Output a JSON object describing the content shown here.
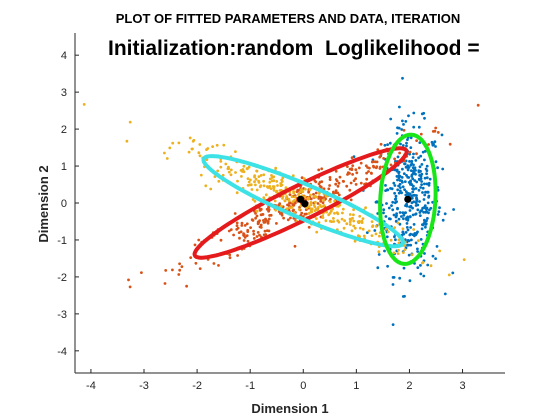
{
  "chart_data": {
    "type": "scatter",
    "title": "PLOT OF FITTED PARAMETERS AND DATA, ITERATION",
    "annotations": [
      "Initialization:random",
      "Loglikelihood ="
    ],
    "xlabel": "Dimension 1",
    "ylabel": "Dimension 2",
    "xlim": [
      -4.3,
      3.8
    ],
    "ylim": [
      -4.6,
      4.6
    ],
    "xticks": [
      "-4",
      "-3",
      "-2",
      "-1",
      "0",
      "1",
      "2",
      "3"
    ],
    "yticks": [
      "-4",
      "-3",
      "-2",
      "-1",
      "0",
      "1",
      "2",
      "3",
      "4"
    ],
    "grid": false,
    "series": [
      {
        "color": "#0072BD",
        "center": [
          2.0,
          0.1
        ],
        "spread": [
          0.3,
          1.0
        ],
        "rotation_deg": 0,
        "count": 420
      },
      {
        "color": "#D95319",
        "center": [
          -0.05,
          0.0
        ],
        "spread": [
          1.35,
          0.22
        ],
        "rotation_deg": 36,
        "count": 360
      },
      {
        "color": "#EDB120",
        "center": [
          0.0,
          0.05
        ],
        "spread": [
          1.3,
          0.22
        ],
        "rotation_deg": -32,
        "count": 360
      }
    ],
    "ellipses": [
      {
        "color": "#E41A1C",
        "center": [
          -0.05,
          0.0
        ],
        "semi_axes": [
          2.45,
          0.42
        ],
        "rotation_deg": 36
      },
      {
        "color": "#3CE2E6",
        "center": [
          0.0,
          0.05
        ],
        "semi_axes": [
          2.2,
          0.42
        ],
        "rotation_deg": -32
      },
      {
        "color": "#19E619",
        "center": [
          1.97,
          0.1
        ],
        "semi_axes": [
          0.52,
          1.75
        ],
        "rotation_deg": -2
      }
    ],
    "means": [
      [
        -0.05,
        0.1
      ],
      [
        0.03,
        -0.02
      ],
      [
        1.97,
        0.1
      ]
    ],
    "mean_color": "#000000"
  }
}
